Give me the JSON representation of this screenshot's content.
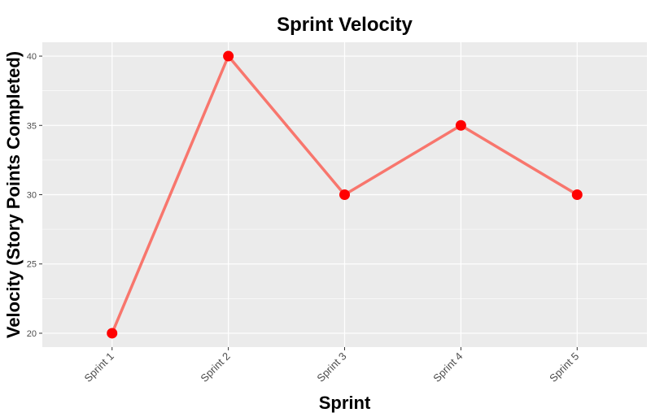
{
  "chart_data": {
    "type": "line",
    "title": "Sprint Velocity",
    "xlabel": "Sprint",
    "ylabel": "Velocity (Story Points Completed)",
    "categories": [
      "Sprint 1",
      "Sprint 2",
      "Sprint 3",
      "Sprint 4",
      "Sprint 5"
    ],
    "series": [
      {
        "values": [
          20,
          40,
          30,
          35,
          30
        ]
      }
    ],
    "ylim": [
      19,
      41
    ],
    "yticks": [
      20,
      25,
      30,
      35,
      40
    ],
    "grid": true,
    "legend": "none",
    "colors": {
      "panel": "#ebebeb",
      "grid": "#ffffff",
      "line": "#f8766d",
      "point": "#ff0000",
      "tick": "#333333"
    }
  }
}
